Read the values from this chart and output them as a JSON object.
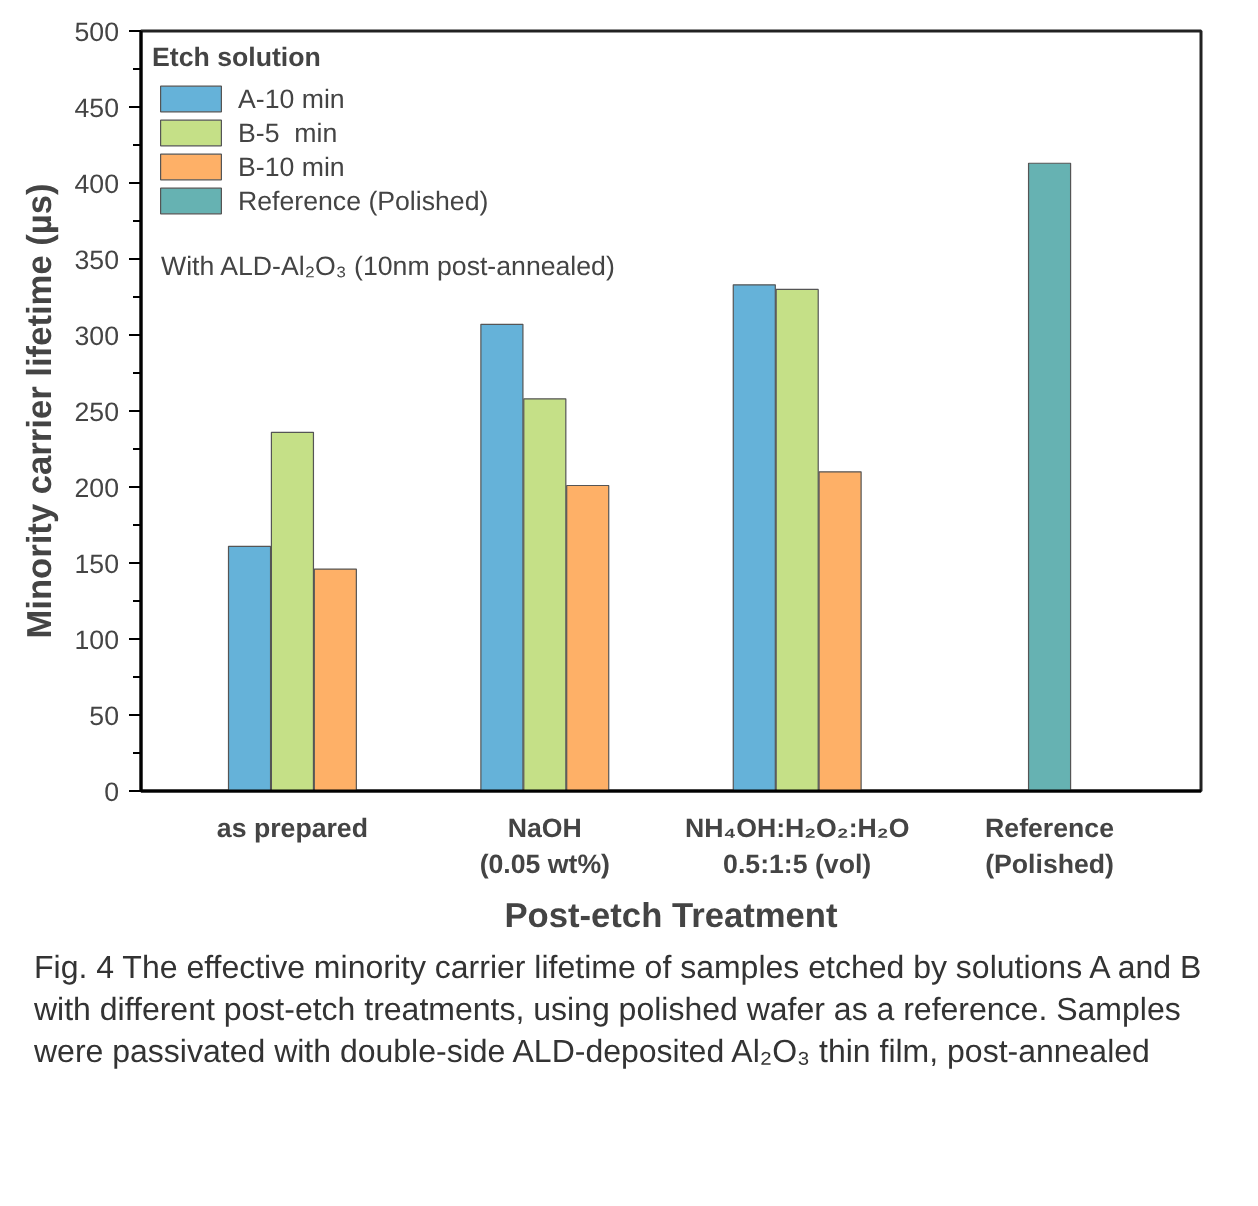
{
  "chart_data": {
    "type": "bar",
    "categories": [
      "as prepared",
      "NaOH\n(0.05 wt%)",
      "NH₄OH:H₂O₂:H₂O\n0.5:1:5 (vol)",
      "Reference\n(Polished)"
    ],
    "series": [
      {
        "name": "A-10 min",
        "color": "#65b2d9",
        "values": [
          161,
          307,
          333,
          null
        ]
      },
      {
        "name": "B-5  min",
        "color": "#c5e087",
        "values": [
          236,
          258,
          330,
          null
        ]
      },
      {
        "name": "B-10 min",
        "color": "#feb067",
        "values": [
          146,
          201,
          210,
          null
        ]
      },
      {
        "name": "Reference (Polished)",
        "color": "#66b2b2",
        "values": [
          null,
          null,
          null,
          413
        ]
      }
    ],
    "xlabel": "Post-etch Treatment",
    "ylabel": "Minority carrier lifetime (µs)",
    "legend_title": "Etch solution",
    "ylim": [
      0,
      500
    ],
    "yticks": [
      0,
      50,
      100,
      150,
      200,
      250,
      300,
      350,
      400,
      450,
      500
    ],
    "grid": false,
    "legend": "top left",
    "annotations": [
      "With ALD-Al₂O₃ (10nm post-annealed)",
      "Fig. 4 The effective minority carrier lifetime of samples etched by solutions A and B with different post-etch treatments, using polished wafer as a reference. Samples were passivated with double-side ALD-deposited Al₂O₃ thin film, post-annealed"
    ]
  }
}
